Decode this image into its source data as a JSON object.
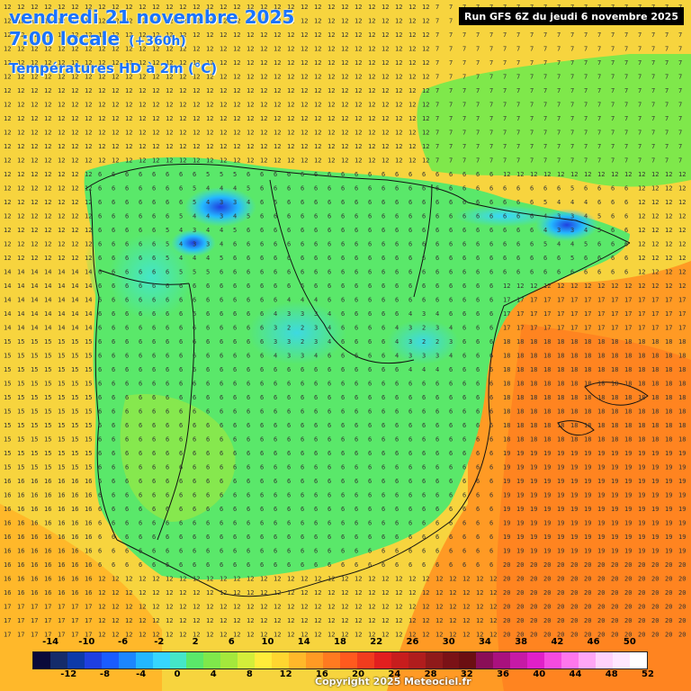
{
  "header": {
    "date": "vendredi 21 novembre 2025",
    "time": "7:00 locale",
    "offset": "(+360h)",
    "parameter": "Températures HD à 2m (°C)"
  },
  "run_info": "Run GFS 6Z du jeudi 6 novembre 2025",
  "legend": {
    "top_labels": [
      "-14",
      "-10",
      "-6",
      "-2",
      "2",
      "6",
      "10",
      "14",
      "18",
      "22",
      "26",
      "30",
      "34",
      "38",
      "42",
      "46",
      "50"
    ],
    "bottom_labels": [
      "-12",
      "-8",
      "-4",
      "0",
      "4",
      "8",
      "12",
      "16",
      "20",
      "24",
      "28",
      "32",
      "36",
      "40",
      "44",
      "48",
      "52"
    ],
    "colors": [
      "#0a0a3a",
      "#152c6a",
      "#0d3aa8",
      "#1f3fe0",
      "#1a5cff",
      "#1c86ff",
      "#23b7ff",
      "#36d6ff",
      "#44e6c8",
      "#5ae86a",
      "#7fe84b",
      "#a4e83c",
      "#d3ee3a",
      "#ffec3a",
      "#ffd630",
      "#ffb82a",
      "#ff9a24",
      "#ff7a20",
      "#ff5a1e",
      "#f13c1e",
      "#e21f1f",
      "#c71d1d",
      "#b01d1d",
      "#8f1a1a",
      "#7a1216",
      "#6b0f12",
      "#8a0e57",
      "#a9117e",
      "#c61aa6",
      "#e020c9",
      "#f54be0",
      "#ff77ec",
      "#ffa6f5",
      "#ffd2fb",
      "#ffe7ff",
      "#ffffff"
    ]
  },
  "copyright": "Copyright 2025 Meteociel.fr",
  "map": {
    "region": "Iberian Peninsula",
    "field": "temperature_2m",
    "units": "°C"
  }
}
